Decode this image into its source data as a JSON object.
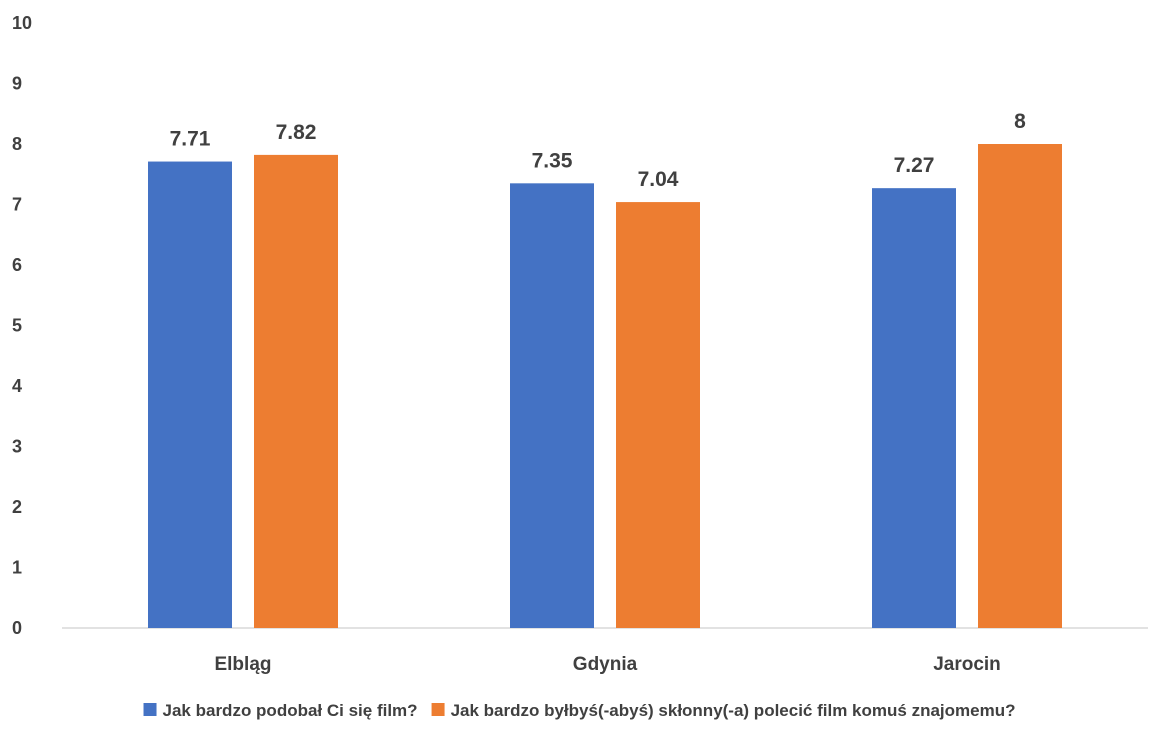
{
  "chart_data": {
    "type": "bar",
    "categories": [
      "Elbląg",
      "Gdynia",
      "Jarocin"
    ],
    "series": [
      {
        "name": "Jak bardzo podobał Ci się film?",
        "values": [
          7.71,
          7.35,
          7.27
        ],
        "color": "#4472C4"
      },
      {
        "name": "Jak bardzo byłbyś(-abyś) skłonny(-a) polecić film komuś znajomemu?",
        "values": [
          7.82,
          7.04,
          8
        ],
        "color": "#ED7D31"
      }
    ],
    "data_labels": [
      [
        "7.71",
        "7.35",
        "7.27"
      ],
      [
        "7.82",
        "7.04",
        "8"
      ]
    ],
    "yticks": [
      "0",
      "1",
      "2",
      "3",
      "4",
      "5",
      "6",
      "7",
      "8",
      "9",
      "10"
    ],
    "ylim": [
      0,
      10
    ],
    "grid": false,
    "legend": "bottom",
    "title": "",
    "xlabel": "",
    "ylabel": ""
  }
}
